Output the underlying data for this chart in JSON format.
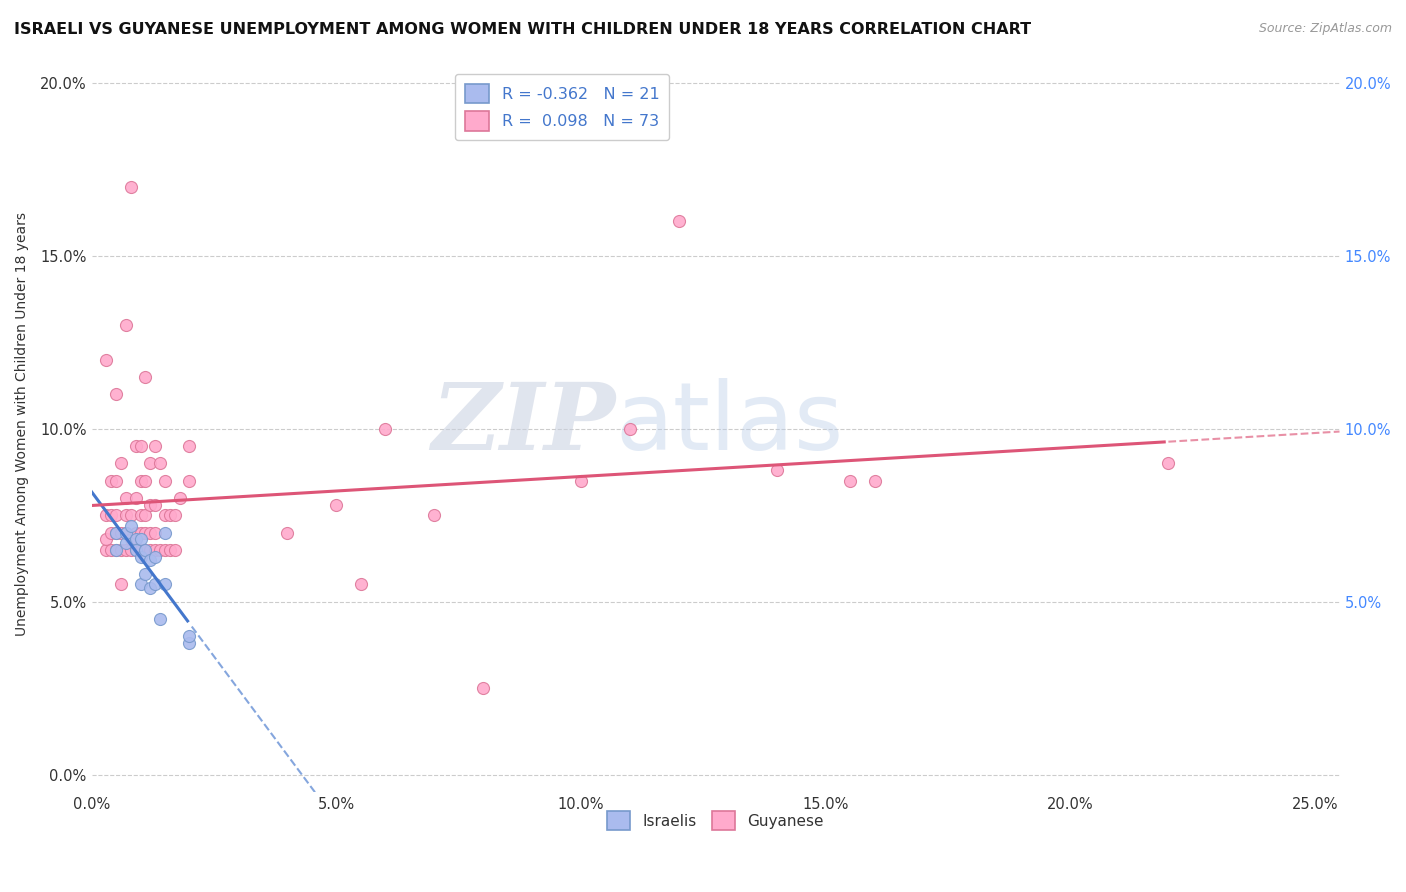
{
  "title": "ISRAELI VS GUYANESE UNEMPLOYMENT AMONG WOMEN WITH CHILDREN UNDER 18 YEARS CORRELATION CHART",
  "source": "Source: ZipAtlas.com",
  "ylabel": "Unemployment Among Women with Children Under 18 years",
  "xlabel_ticks": [
    "0.0%",
    "5.0%",
    "10.0%",
    "15.0%",
    "20.0%",
    "25.0%"
  ],
  "ylabel_ticks_left": [
    "0.0%",
    "5.0%",
    "10.0%",
    "15.0%",
    "20.0%"
  ],
  "ylabel_ticks_right": [
    "5.0%",
    "10.0%",
    "15.0%",
    "20.0%"
  ],
  "xlim": [
    0.0,
    0.255
  ],
  "ylim": [
    -0.005,
    0.208
  ],
  "legend_labels_bottom": [
    "Israelis",
    "Guyanese"
  ],
  "israeli_color": "#aabbee",
  "guyanese_color": "#ffaacc",
  "israeli_edge_color": "#7799cc",
  "guyanese_edge_color": "#dd7799",
  "israeli_line_color": "#4477cc",
  "guyanese_line_color": "#dd5577",
  "israeli_scatter_x": [
    0.005,
    0.005,
    0.007,
    0.007,
    0.008,
    0.009,
    0.009,
    0.01,
    0.01,
    0.01,
    0.011,
    0.011,
    0.012,
    0.012,
    0.013,
    0.013,
    0.014,
    0.015,
    0.015,
    0.02,
    0.02
  ],
  "israeli_scatter_y": [
    0.065,
    0.07,
    0.067,
    0.07,
    0.072,
    0.068,
    0.065,
    0.063,
    0.068,
    0.055,
    0.058,
    0.065,
    0.054,
    0.062,
    0.055,
    0.063,
    0.045,
    0.055,
    0.07,
    0.038,
    0.04
  ],
  "guyanese_scatter_x": [
    0.003,
    0.003,
    0.003,
    0.003,
    0.004,
    0.004,
    0.004,
    0.004,
    0.005,
    0.005,
    0.005,
    0.005,
    0.005,
    0.006,
    0.006,
    0.006,
    0.006,
    0.007,
    0.007,
    0.007,
    0.007,
    0.007,
    0.008,
    0.008,
    0.008,
    0.008,
    0.009,
    0.009,
    0.009,
    0.009,
    0.01,
    0.01,
    0.01,
    0.01,
    0.01,
    0.011,
    0.011,
    0.011,
    0.011,
    0.011,
    0.012,
    0.012,
    0.012,
    0.012,
    0.013,
    0.013,
    0.013,
    0.013,
    0.014,
    0.014,
    0.015,
    0.015,
    0.015,
    0.016,
    0.016,
    0.017,
    0.017,
    0.018,
    0.02,
    0.02,
    0.04,
    0.05,
    0.055,
    0.06,
    0.07,
    0.08,
    0.1,
    0.11,
    0.12,
    0.14,
    0.155,
    0.16,
    0.22
  ],
  "guyanese_scatter_y": [
    0.065,
    0.068,
    0.075,
    0.12,
    0.065,
    0.07,
    0.075,
    0.085,
    0.065,
    0.07,
    0.075,
    0.085,
    0.11,
    0.055,
    0.065,
    0.07,
    0.09,
    0.065,
    0.07,
    0.075,
    0.08,
    0.13,
    0.065,
    0.068,
    0.075,
    0.17,
    0.065,
    0.07,
    0.08,
    0.095,
    0.065,
    0.07,
    0.075,
    0.085,
    0.095,
    0.065,
    0.07,
    0.075,
    0.085,
    0.115,
    0.065,
    0.07,
    0.078,
    0.09,
    0.065,
    0.07,
    0.078,
    0.095,
    0.065,
    0.09,
    0.065,
    0.075,
    0.085,
    0.065,
    0.075,
    0.065,
    0.075,
    0.08,
    0.085,
    0.095,
    0.07,
    0.078,
    0.055,
    0.1,
    0.075,
    0.025,
    0.085,
    0.1,
    0.16,
    0.088,
    0.085,
    0.085,
    0.09
  ],
  "watermark_zip": "ZIP",
  "watermark_atlas": "atlas",
  "background_color": "#ffffff",
  "grid_color": "#cccccc",
  "title_fontsize": 11.5,
  "axis_label_fontsize": 10,
  "tick_fontsize": 10.5,
  "tick_color_left": "#333333",
  "tick_color_right": "#4488ff",
  "scatter_size": 75,
  "isr_line_solid_end": 0.02,
  "guy_line_solid_end": 0.22
}
